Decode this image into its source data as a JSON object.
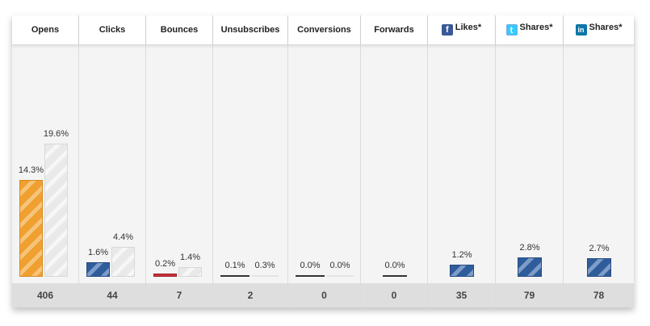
{
  "columns": [
    {
      "header": "Opens",
      "icon": null,
      "total": "406",
      "bars": [
        {
          "label": "14.3%",
          "value": 14.3,
          "style": "orange"
        },
        {
          "label": "19.6%",
          "value": 19.6,
          "style": "gray"
        }
      ]
    },
    {
      "header": "Clicks",
      "icon": null,
      "total": "44",
      "bars": [
        {
          "label": "1.6%",
          "value": 1.6,
          "style": "blue"
        },
        {
          "label": "4.4%",
          "value": 4.4,
          "style": "gray"
        }
      ]
    },
    {
      "header": "Bounces",
      "icon": null,
      "total": "7",
      "bars": [
        {
          "label": "0.2%",
          "value": 0.2,
          "style": "red"
        },
        {
          "label": "1.4%",
          "value": 1.4,
          "style": "gray"
        }
      ]
    },
    {
      "header": "Unsubscribes",
      "icon": null,
      "total": "2",
      "bars": [
        {
          "label": "0.1%",
          "value": 0.1,
          "style": "dark"
        },
        {
          "label": "0.3%",
          "value": 0.3,
          "style": "light"
        }
      ]
    },
    {
      "header": "Conversions",
      "icon": null,
      "total": "0",
      "bars": [
        {
          "label": "0.0%",
          "value": 0.0,
          "style": "dark"
        },
        {
          "label": "0.0%",
          "value": 0.0,
          "style": "light"
        }
      ]
    },
    {
      "header": "Forwards",
      "icon": null,
      "total": "0",
      "bars": [
        {
          "label": "0.0%",
          "value": 0.0,
          "style": "dark"
        }
      ]
    },
    {
      "header": "Likes*",
      "icon": "facebook-icon",
      "total": "35",
      "bars": [
        {
          "label": "1.2%",
          "value": 1.2,
          "style": "blue"
        }
      ]
    },
    {
      "header": "Shares*",
      "icon": "twitter-icon",
      "total": "79",
      "bars": [
        {
          "label": "2.8%",
          "value": 2.8,
          "style": "blue"
        }
      ]
    },
    {
      "header": "Shares*",
      "icon": "linkedin-icon",
      "total": "78",
      "bars": [
        {
          "label": "2.7%",
          "value": 2.7,
          "style": "blue"
        }
      ]
    }
  ],
  "colors": {
    "opens": "#f0a030",
    "benchmark": "#e9e9e9",
    "social": "#2f5d9c",
    "bounce": "#c8323c",
    "unsub_bar": "#333333"
  }
}
